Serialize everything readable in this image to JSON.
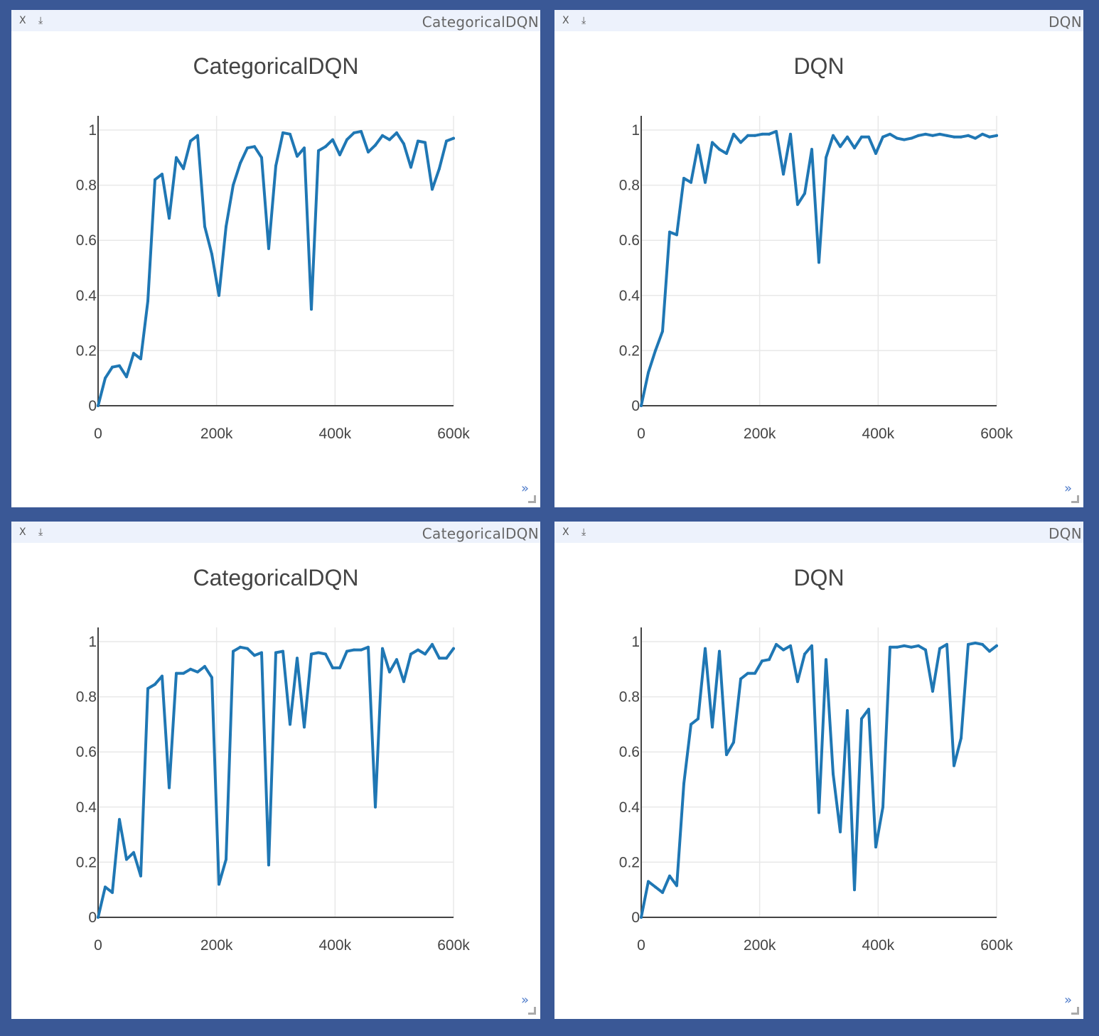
{
  "panes": [
    {
      "pane_title": "CategoricalDQN",
      "close_label": "X",
      "download_label": "⤓",
      "expand_label": "»"
    },
    {
      "pane_title": "DQN",
      "close_label": "X",
      "download_label": "⤓",
      "expand_label": "»"
    },
    {
      "pane_title": "CategoricalDQN",
      "close_label": "X",
      "download_label": "⤓",
      "expand_label": "»"
    },
    {
      "pane_title": "DQN",
      "close_label": "X",
      "download_label": "⤓",
      "expand_label": "»"
    }
  ],
  "line_color": "#1f77b4",
  "chart_data": [
    {
      "type": "line",
      "title": "CategoricalDQN",
      "xlabel": "",
      "ylabel": "",
      "xlim": [
        0,
        600000
      ],
      "ylim": [
        0,
        1
      ],
      "xticks": [
        0,
        200000,
        400000,
        600000
      ],
      "xtick_labels": [
        "0",
        "200k",
        "400k",
        "600k"
      ],
      "yticks": [
        0,
        0.2,
        0.4,
        0.6,
        0.8,
        1
      ],
      "ytick_labels": [
        "0",
        "0.2",
        "0.4",
        "0.6",
        "0.8",
        "1"
      ],
      "series": [
        {
          "name": "trace",
          "x": [
            0,
            12000,
            24000,
            36000,
            48000,
            60000,
            72000,
            84000,
            96000,
            108000,
            120000,
            132000,
            144000,
            156000,
            168000,
            180000,
            192000,
            204000,
            216000,
            228000,
            240000,
            252000,
            264000,
            276000,
            288000,
            300000,
            312000,
            324000,
            336000,
            348000,
            360000,
            372000,
            384000,
            396000,
            408000,
            420000,
            432000,
            444000,
            456000,
            468000,
            480000,
            492000,
            504000,
            516000,
            528000,
            540000,
            552000,
            564000,
            576000,
            588000,
            600000
          ],
          "y": [
            0,
            0.1,
            0.14,
            0.145,
            0.105,
            0.19,
            0.17,
            0.38,
            0.82,
            0.84,
            0.68,
            0.9,
            0.86,
            0.96,
            0.98,
            0.65,
            0.55,
            0.4,
            0.65,
            0.8,
            0.88,
            0.935,
            0.94,
            0.9,
            0.57,
            0.87,
            0.99,
            0.985,
            0.905,
            0.935,
            0.35,
            0.925,
            0.94,
            0.965,
            0.91,
            0.965,
            0.99,
            0.995,
            0.92,
            0.945,
            0.98,
            0.965,
            0.99,
            0.95,
            0.865,
            0.96,
            0.955,
            0.785,
            0.86,
            0.96,
            0.97
          ]
        }
      ]
    },
    {
      "type": "line",
      "title": "DQN",
      "xlabel": "",
      "ylabel": "",
      "xlim": [
        0,
        600000
      ],
      "ylim": [
        0,
        1
      ],
      "xticks": [
        0,
        200000,
        400000,
        600000
      ],
      "xtick_labels": [
        "0",
        "200k",
        "400k",
        "600k"
      ],
      "yticks": [
        0,
        0.2,
        0.4,
        0.6,
        0.8,
        1
      ],
      "ytick_labels": [
        "0",
        "0.2",
        "0.4",
        "0.6",
        "0.8",
        "1"
      ],
      "series": [
        {
          "name": "trace",
          "x": [
            0,
            12000,
            24000,
            36000,
            48000,
            60000,
            72000,
            84000,
            96000,
            108000,
            120000,
            132000,
            144000,
            156000,
            168000,
            180000,
            192000,
            204000,
            216000,
            228000,
            240000,
            252000,
            264000,
            276000,
            288000,
            300000,
            312000,
            324000,
            336000,
            348000,
            360000,
            372000,
            384000,
            396000,
            408000,
            420000,
            432000,
            444000,
            456000,
            468000,
            480000,
            492000,
            504000,
            516000,
            528000,
            540000,
            552000,
            564000,
            576000,
            588000,
            600000
          ],
          "y": [
            0,
            0.12,
            0.2,
            0.27,
            0.63,
            0.62,
            0.825,
            0.81,
            0.945,
            0.81,
            0.955,
            0.93,
            0.915,
            0.985,
            0.955,
            0.98,
            0.98,
            0.985,
            0.985,
            0.995,
            0.84,
            0.985,
            0.73,
            0.77,
            0.93,
            0.52,
            0.9,
            0.98,
            0.94,
            0.975,
            0.935,
            0.975,
            0.975,
            0.915,
            0.975,
            0.985,
            0.97,
            0.965,
            0.97,
            0.98,
            0.985,
            0.98,
            0.985,
            0.98,
            0.975,
            0.975,
            0.98,
            0.97,
            0.985,
            0.975,
            0.98
          ]
        }
      ]
    },
    {
      "type": "line",
      "title": "CategoricalDQN",
      "xlabel": "",
      "ylabel": "",
      "xlim": [
        0,
        600000
      ],
      "ylim": [
        0,
        1
      ],
      "xticks": [
        0,
        200000,
        400000,
        600000
      ],
      "xtick_labels": [
        "0",
        "200k",
        "400k",
        "600k"
      ],
      "yticks": [
        0,
        0.2,
        0.4,
        0.6,
        0.8,
        1
      ],
      "ytick_labels": [
        "0",
        "0.2",
        "0.4",
        "0.6",
        "0.8",
        "1"
      ],
      "series": [
        {
          "name": "trace",
          "x": [
            0,
            12000,
            24000,
            36000,
            48000,
            60000,
            72000,
            84000,
            96000,
            108000,
            120000,
            132000,
            144000,
            156000,
            168000,
            180000,
            192000,
            204000,
            216000,
            228000,
            240000,
            252000,
            264000,
            276000,
            288000,
            300000,
            312000,
            324000,
            336000,
            348000,
            360000,
            372000,
            384000,
            396000,
            408000,
            420000,
            432000,
            444000,
            456000,
            468000,
            480000,
            492000,
            504000,
            516000,
            528000,
            540000,
            552000,
            564000,
            576000,
            588000,
            600000
          ],
          "y": [
            0,
            0.11,
            0.09,
            0.355,
            0.21,
            0.235,
            0.15,
            0.83,
            0.845,
            0.875,
            0.47,
            0.885,
            0.885,
            0.9,
            0.89,
            0.91,
            0.87,
            0.12,
            0.21,
            0.965,
            0.98,
            0.975,
            0.95,
            0.96,
            0.19,
            0.96,
            0.965,
            0.7,
            0.94,
            0.69,
            0.955,
            0.96,
            0.955,
            0.905,
            0.905,
            0.965,
            0.97,
            0.97,
            0.98,
            0.4,
            0.975,
            0.89,
            0.935,
            0.855,
            0.955,
            0.97,
            0.955,
            0.99,
            0.94,
            0.94,
            0.975
          ]
        }
      ]
    },
    {
      "type": "line",
      "title": "DQN",
      "xlabel": "",
      "ylabel": "",
      "xlim": [
        0,
        600000
      ],
      "ylim": [
        0,
        1
      ],
      "xticks": [
        0,
        200000,
        400000,
        600000
      ],
      "xtick_labels": [
        "0",
        "200k",
        "400k",
        "600k"
      ],
      "yticks": [
        0,
        0.2,
        0.4,
        0.6,
        0.8,
        1
      ],
      "ytick_labels": [
        "0",
        "0.2",
        "0.4",
        "0.6",
        "0.8",
        "1"
      ],
      "series": [
        {
          "name": "trace",
          "x": [
            0,
            12000,
            24000,
            36000,
            48000,
            60000,
            72000,
            84000,
            96000,
            108000,
            120000,
            132000,
            144000,
            156000,
            168000,
            180000,
            192000,
            204000,
            216000,
            228000,
            240000,
            252000,
            264000,
            276000,
            288000,
            300000,
            312000,
            324000,
            336000,
            348000,
            360000,
            372000,
            384000,
            396000,
            408000,
            420000,
            432000,
            444000,
            456000,
            468000,
            480000,
            492000,
            504000,
            516000,
            528000,
            540000,
            552000,
            564000,
            576000,
            588000,
            600000
          ],
          "y": [
            0,
            0.13,
            0.11,
            0.09,
            0.15,
            0.115,
            0.485,
            0.7,
            0.72,
            0.975,
            0.69,
            0.965,
            0.59,
            0.635,
            0.865,
            0.885,
            0.885,
            0.93,
            0.935,
            0.99,
            0.97,
            0.985,
            0.855,
            0.955,
            0.985,
            0.38,
            0.935,
            0.52,
            0.31,
            0.75,
            0.1,
            0.72,
            0.755,
            0.255,
            0.4,
            0.98,
            0.98,
            0.985,
            0.98,
            0.985,
            0.97,
            0.82,
            0.975,
            0.99,
            0.55,
            0.65,
            0.99,
            0.995,
            0.99,
            0.965,
            0.985
          ]
        }
      ]
    }
  ]
}
